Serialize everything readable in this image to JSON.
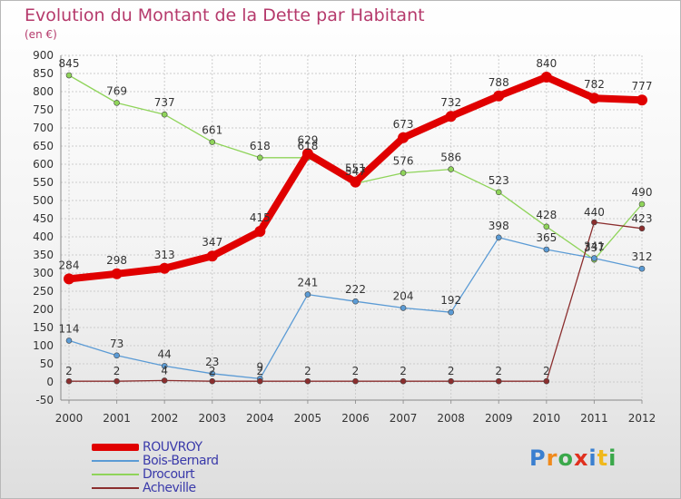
{
  "header": {
    "title": "Evolution du Montant de la Dette par Habitant",
    "subtitle": "(en €)"
  },
  "colors": {
    "title": "#b5396b",
    "grid": "#cccccc",
    "axis_text": "#333333"
  },
  "chart_data": {
    "type": "line",
    "title": "Evolution du Montant de la Dette par Habitant",
    "subtitle": "(en €)",
    "xlabel": "",
    "ylabel": "",
    "x": [
      "2000",
      "2001",
      "2002",
      "2003",
      "2004",
      "2005",
      "2006",
      "2007",
      "2008",
      "2009",
      "2010",
      "2011",
      "2012"
    ],
    "ylim": [
      -50,
      900
    ],
    "yticks": [
      -50,
      0,
      50,
      100,
      150,
      200,
      250,
      300,
      350,
      400,
      450,
      500,
      550,
      600,
      650,
      700,
      750,
      800,
      850,
      900
    ],
    "grid": true,
    "legend_position": "bottom-left",
    "series": [
      {
        "name": "ROUVROY",
        "color": "#e00000",
        "width": 8,
        "values": [
          284,
          298,
          313,
          347,
          415,
          629,
          551,
          673,
          732,
          788,
          840,
          782,
          777
        ],
        "labels": [
          "284",
          "298",
          "313",
          "347",
          "415",
          "629",
          "551",
          "673",
          "732",
          "788",
          "840",
          "782",
          "777"
        ]
      },
      {
        "name": "Bois-Bernard",
        "color": "#5b9bd5",
        "width": 1.3,
        "values": [
          114,
          73,
          44,
          23,
          9,
          241,
          222,
          204,
          192,
          398,
          365,
          341,
          312
        ],
        "labels": [
          "114",
          "73",
          "44",
          "23",
          "9",
          "241",
          "222",
          "204",
          "192",
          "398",
          "365",
          "341",
          "312"
        ]
      },
      {
        "name": "Drocourt",
        "color": "#8fd45a",
        "width": 1.3,
        "values": [
          845,
          769,
          737,
          661,
          618,
          618,
          547,
          576,
          586,
          523,
          428,
          337,
          490
        ],
        "labels": [
          "845",
          "769",
          "737",
          "661",
          "618",
          "618",
          "547",
          "576",
          "586",
          "523",
          "428",
          "337",
          "490"
        ]
      },
      {
        "name": "Acheville",
        "color": "#8b2e2e",
        "width": 1.3,
        "values": [
          2,
          2,
          4,
          2,
          2,
          2,
          2,
          2,
          2,
          2,
          2,
          440,
          423
        ],
        "labels": [
          "2",
          "2",
          "4",
          "2",
          "2",
          "2",
          "2",
          "2",
          "2",
          "2",
          "2",
          "440",
          "423"
        ]
      }
    ]
  },
  "legend": {
    "items": [
      {
        "label": "ROUVROY",
        "color": "#e00000"
      },
      {
        "label": "Bois-Bernard",
        "color": "#5b9bd5"
      },
      {
        "label": "Drocourt",
        "color": "#8fd45a"
      },
      {
        "label": "Acheville",
        "color": "#8b2e2e"
      }
    ]
  },
  "logo": {
    "letters": [
      "P",
      "r",
      "o",
      "x",
      "i",
      "t",
      "i"
    ],
    "colors": [
      "#3a7fd0",
      "#f08a1c",
      "#3aa84a",
      "#e0301e",
      "#3a7fd0",
      "#f0b81c",
      "#3aa84a"
    ]
  }
}
